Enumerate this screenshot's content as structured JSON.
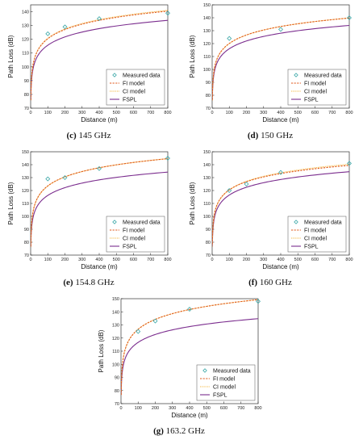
{
  "panels": [
    {
      "id": "c",
      "caption_letter": "(c)",
      "caption_text": "145 GHz"
    },
    {
      "id": "d",
      "caption_letter": "(d)",
      "caption_text": "150 GHz"
    },
    {
      "id": "e",
      "caption_letter": "(e)",
      "caption_text": "154.8 GHz"
    },
    {
      "id": "f",
      "caption_letter": "(f)",
      "caption_text": "160 GHz"
    },
    {
      "id": "g",
      "caption_letter": "(g)",
      "caption_text": "163.2 GHz"
    }
  ],
  "colors": {
    "measured": "#3aa7a7",
    "fi": "#e05a1c",
    "ci": "#f2b233",
    "fspl": "#7b2d8e",
    "axis": "#333333"
  },
  "chart_data": [
    {
      "type": "line",
      "xlabel": "Distance (m)",
      "ylabel": "Path Loss (dB)",
      "xlim": [
        0,
        800
      ],
      "ylim": [
        70,
        145
      ],
      "xticks": [
        0,
        100,
        200,
        300,
        400,
        500,
        600,
        700,
        800
      ],
      "yticks": [
        70,
        80,
        90,
        100,
        110,
        120,
        130,
        140
      ],
      "legend": [
        "Measured data",
        "FI model",
        "CI model",
        "FSPL"
      ],
      "legend_position": "bottom-right",
      "measured": {
        "x": [
          100,
          200,
          400,
          800
        ],
        "y": [
          124,
          129,
          135,
          139
        ]
      },
      "fi": {
        "pl_at_1m": 76.0,
        "n": 2.22
      },
      "ci": {
        "pl_at_1m": 75.7,
        "n": 2.25
      },
      "fspl": {
        "pl_at_1m": 75.7,
        "n": 2.0
      }
    },
    {
      "type": "line",
      "xlabel": "Distance (m)",
      "ylabel": "Path Loss (dB)",
      "xlim": [
        0,
        800
      ],
      "ylim": [
        70,
        150
      ],
      "xticks": [
        0,
        100,
        200,
        300,
        400,
        500,
        600,
        700,
        800
      ],
      "yticks": [
        70,
        80,
        90,
        100,
        110,
        120,
        130,
        140,
        150
      ],
      "legend": [
        "Measured data",
        "FI model",
        "CI model",
        "FSPL"
      ],
      "legend_position": "bottom-right",
      "measured": {
        "x": [
          100,
          400,
          800
        ],
        "y": [
          124,
          131,
          140
        ]
      },
      "fi": {
        "pl_at_1m": 76.5,
        "n": 2.18
      },
      "ci": {
        "pl_at_1m": 76.0,
        "n": 2.2
      },
      "fspl": {
        "pl_at_1m": 76.0,
        "n": 2.0
      }
    },
    {
      "type": "line",
      "xlabel": "Distance (m)",
      "ylabel": "Path Loss (dB)",
      "xlim": [
        0,
        800
      ],
      "ylim": [
        70,
        150
      ],
      "xticks": [
        0,
        100,
        200,
        300,
        400,
        500,
        600,
        700,
        800
      ],
      "yticks": [
        70,
        80,
        90,
        100,
        110,
        120,
        130,
        140,
        150
      ],
      "legend": [
        "Measured data",
        "FI model",
        "CI model",
        "FSPL"
      ],
      "legend_position": "bottom-right",
      "measured": {
        "x": [
          100,
          200,
          400,
          800
        ],
        "y": [
          129,
          130,
          137,
          145
        ]
      },
      "fi": {
        "pl_at_1m": 77.0,
        "n": 2.33
      },
      "ci": {
        "pl_at_1m": 76.2,
        "n": 2.36
      },
      "fspl": {
        "pl_at_1m": 76.2,
        "n": 2.0
      }
    },
    {
      "type": "line",
      "xlabel": "Distance (m)",
      "ylabel": "Path Loss (dB)",
      "xlim": [
        0,
        800
      ],
      "ylim": [
        70,
        150
      ],
      "xticks": [
        0,
        100,
        200,
        300,
        400,
        500,
        600,
        700,
        800
      ],
      "yticks": [
        70,
        80,
        90,
        100,
        110,
        120,
        130,
        140,
        150
      ],
      "legend": [
        "Measured data",
        "FI model",
        "CI model",
        "FSPL"
      ],
      "legend_position": "bottom-right",
      "measured": {
        "x": [
          100,
          200,
          400,
          800
        ],
        "y": [
          120,
          125,
          134,
          141
        ]
      },
      "fi": {
        "pl_at_1m": 78.5,
        "n": 2.1
      },
      "ci": {
        "pl_at_1m": 76.5,
        "n": 2.2
      },
      "fspl": {
        "pl_at_1m": 76.5,
        "n": 2.0
      }
    },
    {
      "type": "line",
      "xlabel": "Distance (m)",
      "ylabel": "Path Loss (dB)",
      "xlim": [
        0,
        800
      ],
      "ylim": [
        70,
        150
      ],
      "xticks": [
        0,
        100,
        200,
        300,
        400,
        500,
        600,
        700,
        800
      ],
      "yticks": [
        70,
        80,
        90,
        100,
        110,
        120,
        130,
        140,
        150
      ],
      "legend": [
        "Measured data",
        "FI model",
        "CI model",
        "FSPL"
      ],
      "legend_position": "bottom-right",
      "measured": {
        "x": [
          100,
          200,
          400,
          800
        ],
        "y": [
          125,
          133,
          142,
          148
        ]
      },
      "fi": {
        "pl_at_1m": 76.7,
        "n": 2.5
      },
      "ci": {
        "pl_at_1m": 76.7,
        "n": 2.5
      },
      "fspl": {
        "pl_at_1m": 76.7,
        "n": 2.0
      }
    }
  ]
}
